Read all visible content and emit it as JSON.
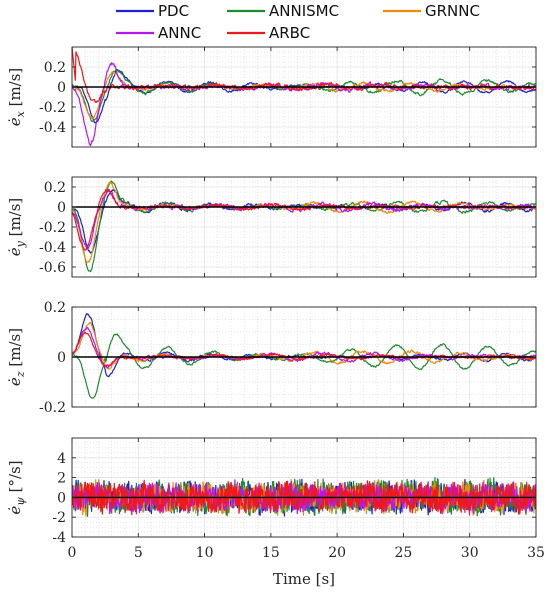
{
  "chart_data": [
    {
      "type": "line",
      "ylabel_symbol": "ė",
      "ylabel_sub": "x",
      "ylabel_unit": "[m/s]",
      "xlim": [
        0,
        35
      ],
      "ylim": [
        -0.6,
        0.4
      ],
      "yticks": [
        -0.4,
        -0.2,
        0,
        0.2
      ],
      "ytick_labels": [
        "-0.4",
        "-0.2",
        "0",
        "0.2"
      ],
      "series_profile": {
        "PDC": {
          "peak": -0.35,
          "peak_t": 1.8,
          "osc": 0.06,
          "noise": 0.015
        },
        "ANNISMC": {
          "peak": -0.33,
          "peak_t": 1.6,
          "osc": 0.07,
          "noise": 0.02
        },
        "GRNNC": {
          "peak": -0.3,
          "peak_t": 1.5,
          "osc": 0.04,
          "noise": 0.02
        },
        "ANNC": {
          "peak": -0.56,
          "peak_t": 1.4,
          "osc": 0.03,
          "noise": 0.03
        },
        "ARBC": {
          "peak": 0.4,
          "peak_t": 0.1,
          "osc": 0.02,
          "noise": 0.03
        }
      }
    },
    {
      "type": "line",
      "ylabel_symbol": "ė",
      "ylabel_sub": "y",
      "ylabel_unit": "[m/s]",
      "xlim": [
        0,
        35
      ],
      "ylim": [
        -0.7,
        0.3
      ],
      "yticks": [
        -0.6,
        -0.4,
        -0.2,
        0,
        0.2
      ],
      "ytick_labels": [
        "-0.6",
        "-0.4",
        "-0.2",
        "0",
        "0.2"
      ],
      "series_profile": {
        "PDC": {
          "peak": -0.45,
          "peak_t": 1.4,
          "osc": 0.04,
          "noise": 0.02
        },
        "ANNISMC": {
          "peak": -0.65,
          "peak_t": 1.3,
          "osc": 0.05,
          "noise": 0.02
        },
        "GRNNC": {
          "peak": -0.55,
          "peak_t": 1.2,
          "osc": 0.05,
          "noise": 0.02
        },
        "ANNC": {
          "peak": -0.4,
          "peak_t": 1.1,
          "osc": 0.03,
          "noise": 0.03
        },
        "ARBC": {
          "peak": -0.43,
          "peak_t": 1.0,
          "osc": 0.02,
          "noise": 0.02
        }
      }
    },
    {
      "type": "line",
      "ylabel_symbol": "ė",
      "ylabel_sub": "z",
      "ylabel_unit": "[m/s]",
      "xlim": [
        0,
        35
      ],
      "ylim": [
        -0.2,
        0.2
      ],
      "yticks": [
        -0.2,
        0,
        0.2
      ],
      "ytick_labels": [
        "-0.2",
        "0",
        "0.2"
      ],
      "series_profile": {
        "PDC": {
          "peak": 0.17,
          "peak_t": 1.2,
          "osc": 0.015,
          "noise": 0.006
        },
        "ANNISMC": {
          "peak": -0.16,
          "peak_t": 1.5,
          "osc": 0.05,
          "noise": 0.006
        },
        "GRNNC": {
          "peak": 0.14,
          "peak_t": 1.3,
          "osc": 0.025,
          "noise": 0.008
        },
        "ANNC": {
          "peak": 0.12,
          "peak_t": 1.1,
          "osc": 0.015,
          "noise": 0.008
        },
        "ARBC": {
          "peak": 0.1,
          "peak_t": 1.0,
          "osc": 0.01,
          "noise": 0.006
        }
      }
    },
    {
      "type": "line",
      "ylabel_symbol": "ė",
      "ylabel_sub": "ψ",
      "ylabel_unit": "[°/s]",
      "xlim": [
        0,
        35
      ],
      "ylim": [
        -4,
        6
      ],
      "yticks": [
        -4,
        -2,
        0,
        2,
        4
      ],
      "ytick_labels": [
        "-4",
        "-2",
        "0",
        "2",
        "4"
      ],
      "series_profile": {
        "PDC": {
          "peak": 0,
          "peak_t": 0,
          "osc": 0.3,
          "noise": 1.4
        },
        "ANNISMC": {
          "peak": 0,
          "peak_t": 0,
          "osc": 0.3,
          "noise": 1.5
        },
        "GRNNC": {
          "peak": 0,
          "peak_t": 0,
          "osc": 0.3,
          "noise": 1.4
        },
        "ANNC": {
          "peak": 0,
          "peak_t": 0,
          "osc": 0.3,
          "noise": 1.3
        },
        "ARBC": {
          "peak": 0,
          "peak_t": 0,
          "osc": 0.3,
          "noise": 1.3
        }
      }
    }
  ],
  "xticks": [
    0,
    5,
    10,
    15,
    20,
    25,
    30,
    35
  ],
  "xtick_labels": [
    "0",
    "5",
    "10",
    "15",
    "20",
    "25",
    "30",
    "35"
  ],
  "xlabel": "Time [s]",
  "legend": {
    "placement": "top",
    "entries": [
      {
        "name": "PDC",
        "color": "#1f1fd6"
      },
      {
        "name": "ANNISMC",
        "color": "#1f8a2e"
      },
      {
        "name": "GRNNC",
        "color": "#f08a0c"
      },
      {
        "name": "ANNC",
        "color": "#b418f0"
      },
      {
        "name": "ARBC",
        "color": "#f01818"
      }
    ]
  },
  "colors": {
    "axis": "#262626",
    "zero_line": "#000000",
    "grid": "#d9d9d9"
  }
}
